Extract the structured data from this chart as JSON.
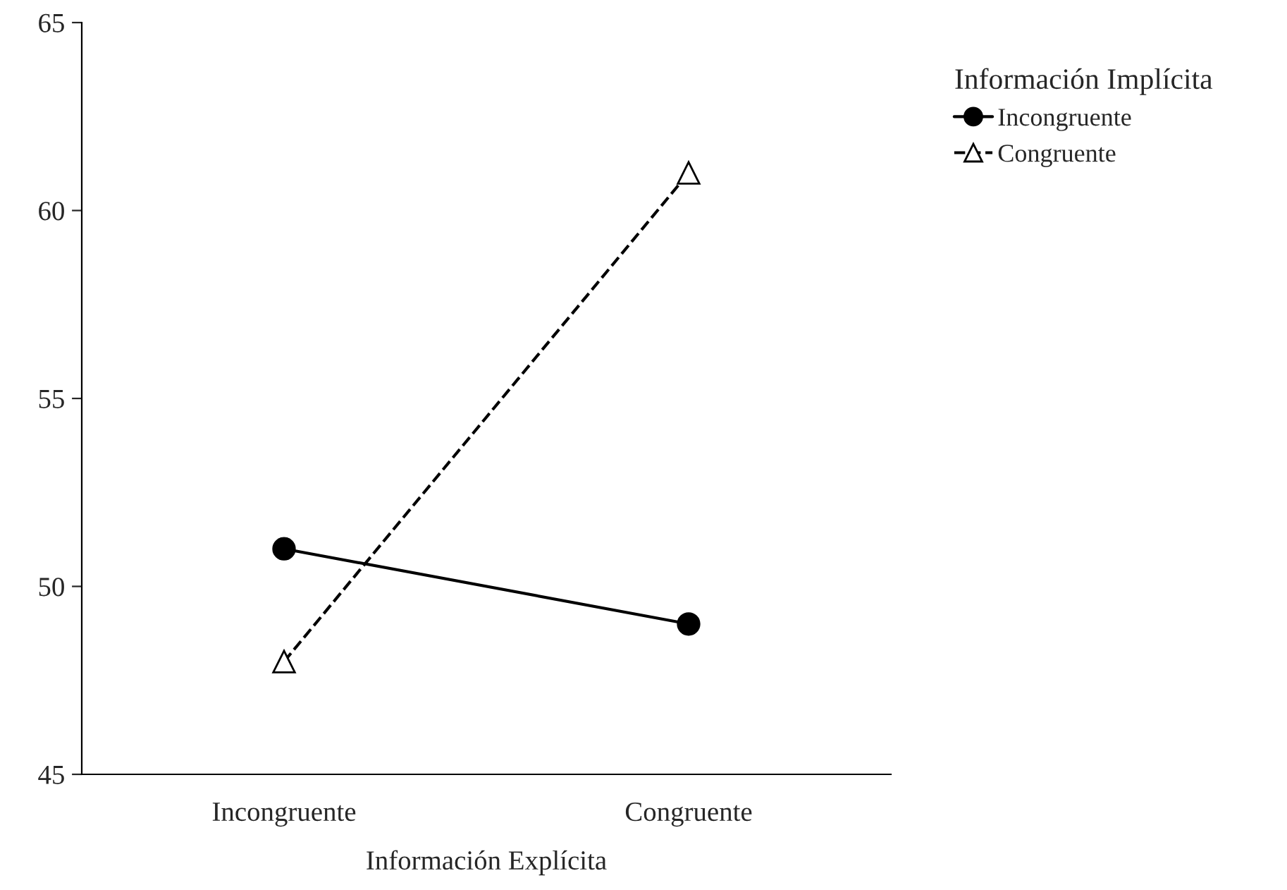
{
  "chart_data": {
    "type": "line",
    "xlabel": "Información Explícita",
    "legend_title": "Información Implícita",
    "categories": [
      "Incongruente",
      "Congruente"
    ],
    "series": [
      {
        "name": "Incongruente",
        "color": "#000000",
        "values": [
          51,
          49
        ],
        "marker": "circle",
        "line_style": "solid"
      },
      {
        "name": "Congruente",
        "color": "#000000",
        "values": [
          48,
          61
        ],
        "marker": "triangle",
        "line_style": "dashed"
      }
    ],
    "ylim": [
      45,
      65
    ],
    "yticks": [
      45,
      50,
      55,
      60,
      65
    ],
    "grid": false,
    "legend": "top right"
  }
}
